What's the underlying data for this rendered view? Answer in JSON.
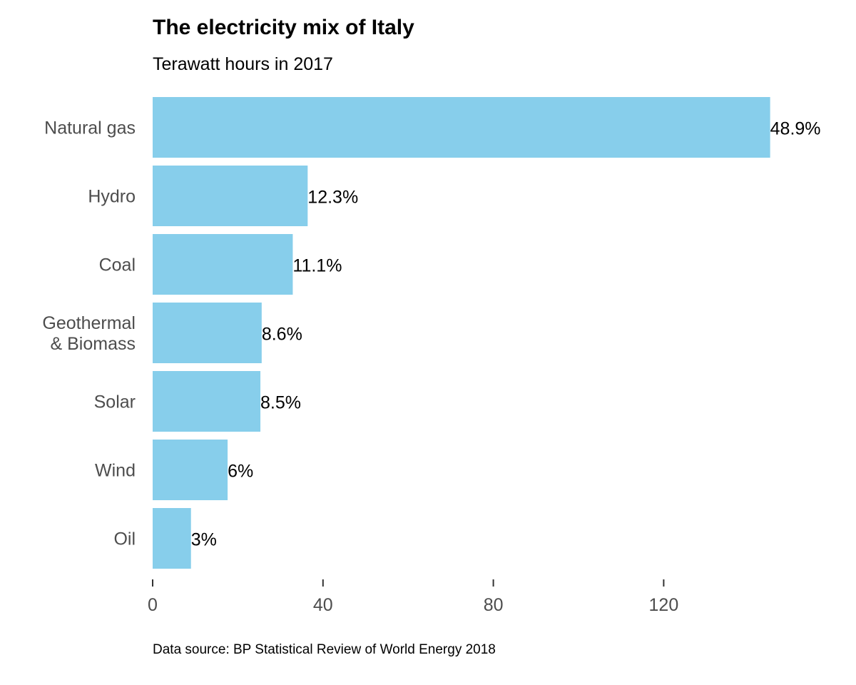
{
  "chart_data": {
    "type": "bar",
    "orientation": "horizontal",
    "title": "The electricity mix of Italy",
    "subtitle": "Terawatt hours in 2017",
    "categories": [
      [
        "Natural gas"
      ],
      [
        "Hydro"
      ],
      [
        "Coal"
      ],
      [
        "Geothermal",
        "& Biomass"
      ],
      [
        "Solar"
      ],
      [
        "Wind"
      ],
      [
        "Oil"
      ]
    ],
    "values": [
      145,
      36.4,
      32.9,
      25.6,
      25.3,
      17.6,
      9.0
    ],
    "value_labels": [
      "48.9%",
      "12.3%",
      "11.1%",
      "8.6%",
      "8.5%",
      "6%",
      "3%"
    ],
    "xticks": [
      0,
      40,
      80,
      120
    ],
    "xtick_labels": [
      "0",
      "40",
      "80",
      "120"
    ],
    "xlim": [
      0,
      154
    ],
    "xlabel": "",
    "ylabel": "",
    "grid": false,
    "legend": "none",
    "bar_color": "#87CEEB",
    "source": "Data source: BP Statistical Review of World Energy 2018"
  }
}
